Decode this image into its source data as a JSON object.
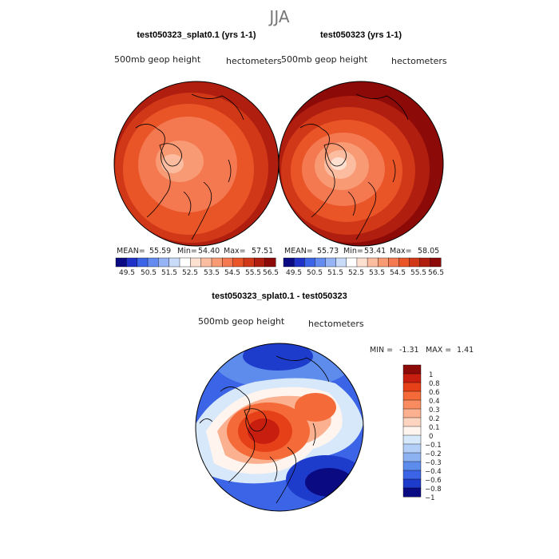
{
  "title": "JJA",
  "chart_data": [
    {
      "type": "heatmap",
      "projection": "polar stereographic (north pole)",
      "title": "test050323_splat0.1 (yrs 1-1)",
      "variable": "500mb geop height",
      "units": "hectometers",
      "stats": {
        "mean_label": "MEAN=",
        "mean": "55.59",
        "min_label": "Min=",
        "min": "54.40",
        "max_label": "Max=",
        "max": "57.51"
      },
      "colorbar_ticks": [
        "49.5",
        "50.5",
        "51.5",
        "52.5",
        "53.5",
        "54.5",
        "55.5",
        "56.5"
      ]
    },
    {
      "type": "heatmap",
      "projection": "polar stereographic (north pole)",
      "title": "test050323 (yrs 1-1)",
      "variable": "500mb geop height",
      "units": "hectometers",
      "stats": {
        "mean_label": "MEAN=",
        "mean": "55.73",
        "min_label": "Min=",
        "min": "53.41",
        "max_label": "Max=",
        "max": "58.05"
      },
      "colorbar_ticks": [
        "49.5",
        "50.5",
        "51.5",
        "52.5",
        "53.5",
        "54.5",
        "55.5",
        "56.5"
      ]
    },
    {
      "type": "heatmap",
      "projection": "polar stereographic (north pole)",
      "title": "test050323_splat0.1 - test050323",
      "variable": "500mb geop height",
      "units": "hectometers",
      "stats": {
        "min_label": "MIN =",
        "min": "-1.31",
        "max_label": "MAX =",
        "max": "1.41"
      },
      "colorbar_ticks": [
        "1",
        "0.8",
        "0.6",
        "0.4",
        "0.3",
        "0.2",
        "0.1",
        "0",
        "−0.1",
        "−0.2",
        "−0.3",
        "−0.4",
        "−0.6",
        "−0.8",
        "−1"
      ]
    }
  ],
  "colors": {
    "abs_scale": [
      "#0a0a82",
      "#1e32c8",
      "#3c64e6",
      "#648cf0",
      "#96b4f5",
      "#c8dcfa",
      "#ffffff",
      "#fde0d0",
      "#fcbca0",
      "#f89a74",
      "#f47850",
      "#ea5528",
      "#d03818",
      "#b01e10",
      "#8c0a08"
    ],
    "diff_scale": [
      "#8c0a08",
      "#c81e10",
      "#e64018",
      "#f46a38",
      "#f88c60",
      "#fbb090",
      "#fdd4c0",
      "#fff5ee",
      "#d8e8fb",
      "#b4cff7",
      "#8cb2f2",
      "#5e8cec",
      "#3c64e6",
      "#1e3ccc",
      "#0a0a82"
    ]
  }
}
